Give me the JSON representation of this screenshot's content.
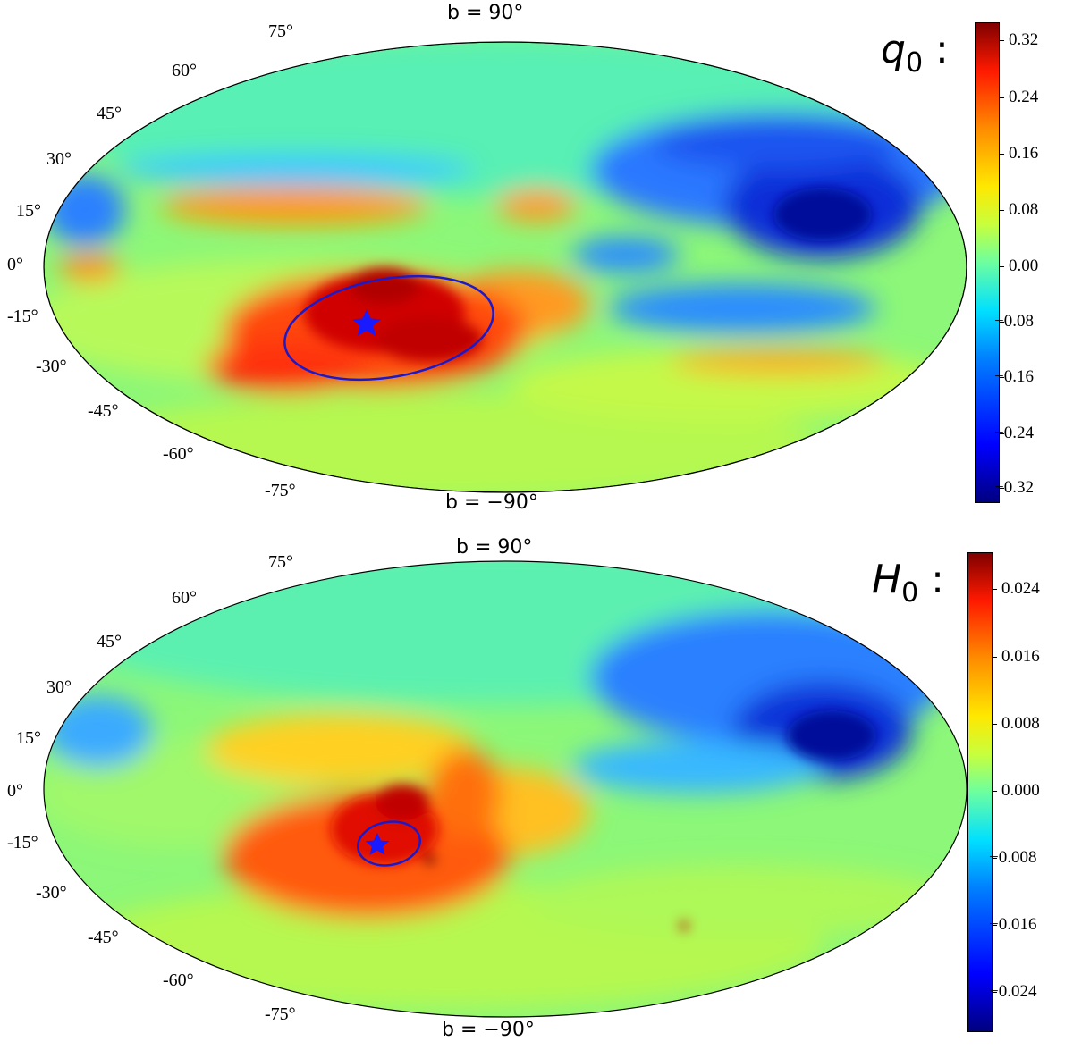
{
  "chart_data": [
    {
      "type": "heatmap",
      "projection": "mollweide",
      "quantity_label": "q",
      "quantity_sub": "0",
      "north_pole_label": "b = 90°",
      "south_pole_label": "b = −90°",
      "lat_labels": [
        "75°",
        "60°",
        "45°",
        "30°",
        "15°",
        "0°",
        "-15°",
        "-30°",
        "-45°",
        "-60°",
        "-75°"
      ],
      "colorbar": {
        "ticks": [
          "0.32",
          "0.24",
          "0.16",
          "0.08",
          "0.00",
          "−0.08",
          "−0.16",
          "−0.24",
          "−0.32"
        ],
        "range": [
          -0.34,
          0.34
        ]
      },
      "marker": {
        "symbol": "star",
        "color": "#1a1aff"
      },
      "dipole_ellipse": "large"
    },
    {
      "type": "heatmap",
      "projection": "mollweide",
      "quantity_label": "H",
      "quantity_sub": "0",
      "north_pole_label": "b = 90°",
      "south_pole_label": "b = −90°",
      "lat_labels": [
        "75°",
        "60°",
        "45°",
        "30°",
        "15°",
        "0°",
        "-15°",
        "-30°",
        "-45°",
        "-60°",
        "-75°"
      ],
      "colorbar": {
        "ticks": [
          "0.024",
          "0.016",
          "0.008",
          "0.000",
          "−0.008",
          "−0.016",
          "−0.024"
        ],
        "range": [
          -0.028,
          0.028
        ]
      },
      "marker": {
        "symbol": "star",
        "color": "#1a1aff"
      },
      "dipole_ellipse": "small"
    }
  ],
  "colors": {
    "marker": "#1a1aff",
    "ellipse": "#1a1acc"
  }
}
